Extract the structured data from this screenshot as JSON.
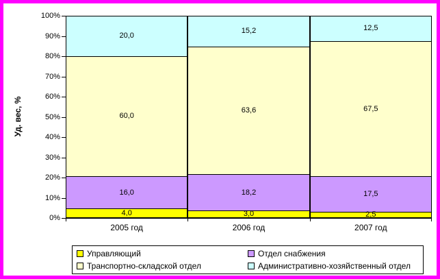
{
  "frame": {
    "border_color": "#FF00FF",
    "background_color": "#FFFFFF"
  },
  "chart_data": {
    "type": "bar",
    "subtype": "stacked-100",
    "title": "",
    "xlabel": "",
    "ylabel": "Уд. вес, %",
    "ylim": [
      0,
      100
    ],
    "grid": false,
    "legend_position": "bottom",
    "y_ticks": [
      "0%",
      "10%",
      "20%",
      "30%",
      "40%",
      "50%",
      "60%",
      "70%",
      "80%",
      "90%",
      "100%"
    ],
    "categories": [
      "2005 год",
      "2006 год",
      "2007 год"
    ],
    "series": [
      {
        "name": "Управляющий",
        "color": "#FFFF00",
        "values": [
          4.0,
          3.0,
          2.5
        ],
        "data_labels": [
          "4,0",
          "3,0",
          "2,5"
        ]
      },
      {
        "name": "Отдел снабжения",
        "color": "#CC99FF",
        "values": [
          16.0,
          18.2,
          17.5
        ],
        "data_labels": [
          "16,0",
          "18,2",
          "17,5"
        ]
      },
      {
        "name": "Транспортно-складской отдел",
        "color": "#FFFFCC",
        "values": [
          60.0,
          63.6,
          67.5
        ],
        "data_labels": [
          "60,0",
          "63,6",
          "67,5"
        ]
      },
      {
        "name": "Административно-хозяйственный отдел",
        "color": "#CCFFFF",
        "values": [
          20.0,
          15.2,
          12.5
        ],
        "data_labels": [
          "20,0",
          "15,2",
          "12,5"
        ]
      }
    ]
  }
}
